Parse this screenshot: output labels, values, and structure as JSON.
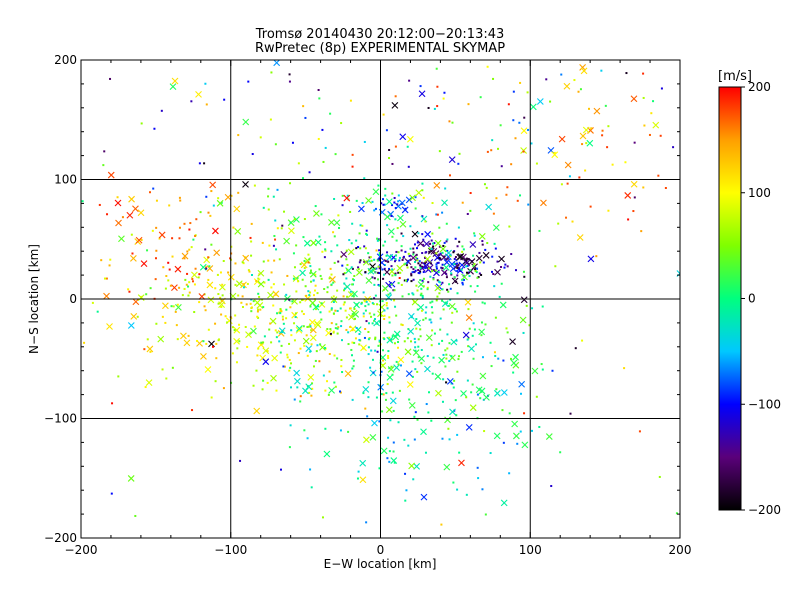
{
  "chart_data": {
    "type": "scatter",
    "title": "Tromsø 20140430 20:12:00−20:13:43",
    "subtitle": "RwPretec (8p) EXPERIMENTAL SKYMAP",
    "xlabel": "E−W location [km]",
    "ylabel": "N−S location [km]",
    "xlim": [
      -200,
      200
    ],
    "ylim": [
      -200,
      200
    ],
    "xticks": [
      "−200",
      "−100",
      "0",
      "100",
      "200"
    ],
    "yticks": [
      "−200",
      "−100",
      "0",
      "100",
      "200"
    ],
    "grid": true,
    "colorbar": {
      "label": "[m/s]",
      "range": [
        -200,
        200
      ],
      "ticks": [
        "−200",
        "−100",
        "0",
        "100",
        "200"
      ],
      "colormap": [
        "#000000",
        "#5a007a",
        "#0000ff",
        "#00c8ff",
        "#00ff7f",
        "#7fff00",
        "#ffff00",
        "#ff9f00",
        "#ff0000"
      ]
    },
    "markers": [
      "dot",
      "x"
    ],
    "clusters": [
      {
        "center": [
          -70,
          -12
        ],
        "spread": [
          45,
          30
        ],
        "velocity": [
          60,
          140
        ],
        "count": 280
      },
      {
        "center": [
          -140,
          45
        ],
        "spread": [
          30,
          25
        ],
        "velocity": [
          120,
          200
        ],
        "count": 80
      },
      {
        "center": [
          30,
          30
        ],
        "spread": [
          25,
          10
        ],
        "velocity": [
          -200,
          -80
        ],
        "count": 240
      },
      {
        "center": [
          10,
          78
        ],
        "spread": [
          15,
          4
        ],
        "velocity": [
          -130,
          -40
        ],
        "count": 30
      },
      {
        "center": [
          10,
          0
        ],
        "spread": [
          40,
          40
        ],
        "velocity": [
          -40,
          70
        ],
        "count": 480
      },
      {
        "center": [
          30,
          -90
        ],
        "spread": [
          45,
          40
        ],
        "velocity": [
          -90,
          30
        ],
        "count": 150
      },
      {
        "center": [
          -60,
          20
        ],
        "spread": [
          50,
          40
        ],
        "velocity": [
          0,
          90
        ],
        "count": 120
      },
      {
        "center": [
          0,
          150
        ],
        "spread": [
          110,
          40
        ],
        "velocity": [
          -200,
          200
        ],
        "count": 110
      },
      {
        "center": [
          130,
          130
        ],
        "spread": [
          45,
          45
        ],
        "velocity": [
          60,
          200
        ],
        "count": 70
      },
      {
        "center": [
          0,
          0
        ],
        "spread": [
          140,
          120
        ],
        "velocity": [
          -200,
          200
        ],
        "count": 180
      }
    ]
  }
}
